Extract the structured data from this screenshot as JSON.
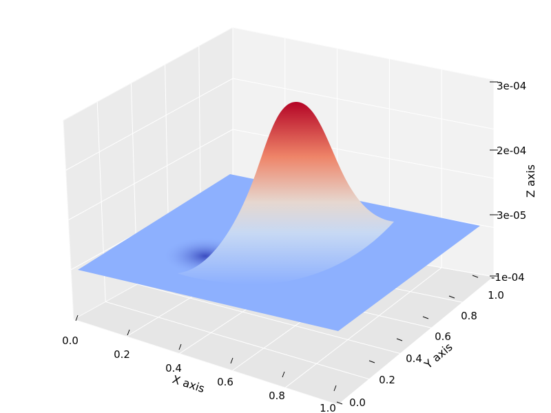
{
  "chart_data": {
    "type": "surface",
    "title": "",
    "colormap": "coolwarm",
    "grid": true,
    "x_axis": {
      "label": "X axis",
      "range": [
        0.0,
        1.0
      ],
      "ticks": [
        "0.0",
        "0.2",
        "0.4",
        "0.6",
        "0.8",
        "1.0"
      ]
    },
    "y_axis": {
      "label": "Y axis",
      "range": [
        0.0,
        1.0
      ],
      "ticks": [
        "0.0",
        "0.2",
        "0.4",
        "0.6",
        "0.8",
        "1.0"
      ]
    },
    "z_axis": {
      "label": "Z axis",
      "ticks": [
        "-1e-04",
        "3e-05",
        "2e-04",
        "3e-04"
      ]
    },
    "surface": {
      "baseline": 0.0,
      "peak": {
        "x": 0.55,
        "y": 0.55,
        "z": 0.0003
      },
      "trough": {
        "x": 0.35,
        "y": 0.25,
        "z": -0.0001
      }
    }
  }
}
